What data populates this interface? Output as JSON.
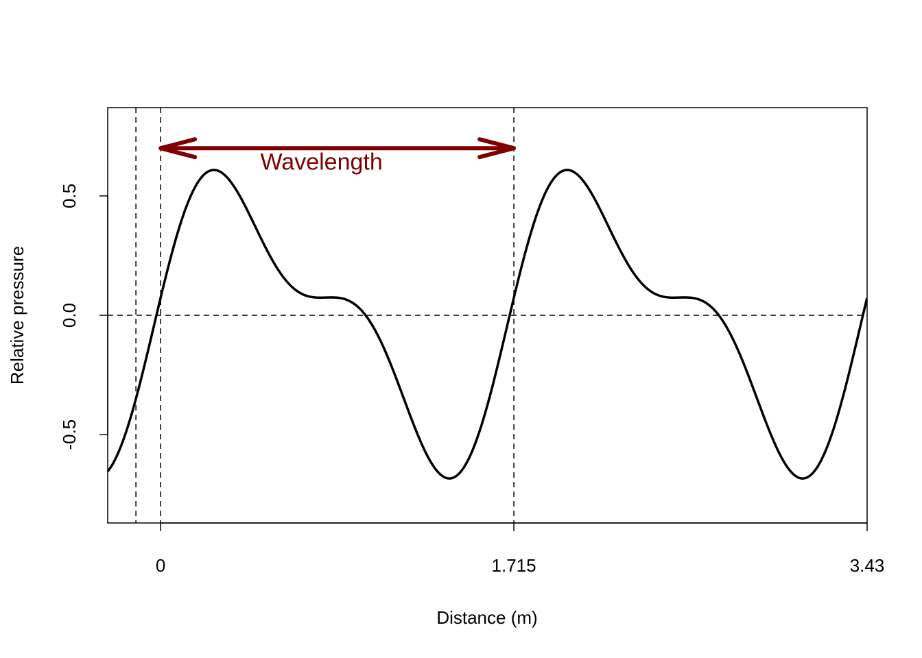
{
  "chart_data": {
    "type": "line",
    "title": "",
    "xlabel": "Distance (m)",
    "ylabel": "Relative pressure",
    "xlim": [
      -0.257,
      3.43
    ],
    "ylim": [
      -0.87,
      0.87
    ],
    "x_ticks": [
      {
        "value": 0,
        "label": "0"
      },
      {
        "value": 1.715,
        "label": "1.715"
      },
      {
        "value": 3.43,
        "label": "3.43"
      }
    ],
    "y_ticks": [
      {
        "value": -0.5,
        "label": "-0.5"
      },
      {
        "value": 0.0,
        "label": "0.0"
      },
      {
        "value": 0.5,
        "label": "0.5"
      }
    ],
    "wave": {
      "wavelength": 1.715,
      "fundamental_amplitude": 0.5,
      "second_harmonic_amplitude": 0.25,
      "second_harmonic_phase": 0.3
    },
    "reference_lines": {
      "vertical": [
        -0.12,
        0,
        1.715
      ],
      "horizontal": [
        0
      ]
    },
    "annotation": {
      "text": "Wavelength",
      "from_x": 0,
      "to_x": 1.715,
      "y": 0.7,
      "label_y": 0.61,
      "color": "#7f0000"
    },
    "grid": false,
    "legend": false,
    "line_color": "#000000"
  }
}
